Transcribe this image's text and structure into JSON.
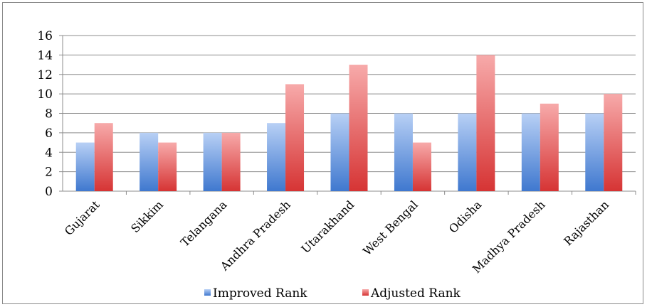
{
  "chart_data": {
    "type": "bar",
    "categories": [
      "Gujarat",
      "Sikkim",
      "Telangana",
      "Andhra Pradesh",
      "Utarakhand",
      "West Bengal",
      "Odisha",
      "Madhya Pradesh",
      "Rajasthan"
    ],
    "series": [
      {
        "name": "Improved Rank",
        "values": [
          5,
          6,
          6,
          7,
          8,
          8,
          8,
          8,
          8
        ],
        "color": "#4a7fd1"
      },
      {
        "name": "Adjusted Rank",
        "values": [
          7,
          5,
          6,
          11,
          13,
          5,
          14,
          9,
          10
        ],
        "color": "#d9393a"
      }
    ],
    "ylim": [
      0,
      16
    ],
    "yticks": [
      0,
      2,
      4,
      6,
      8,
      10,
      12,
      14,
      16
    ],
    "grid": true,
    "legend_position": "bottom"
  }
}
